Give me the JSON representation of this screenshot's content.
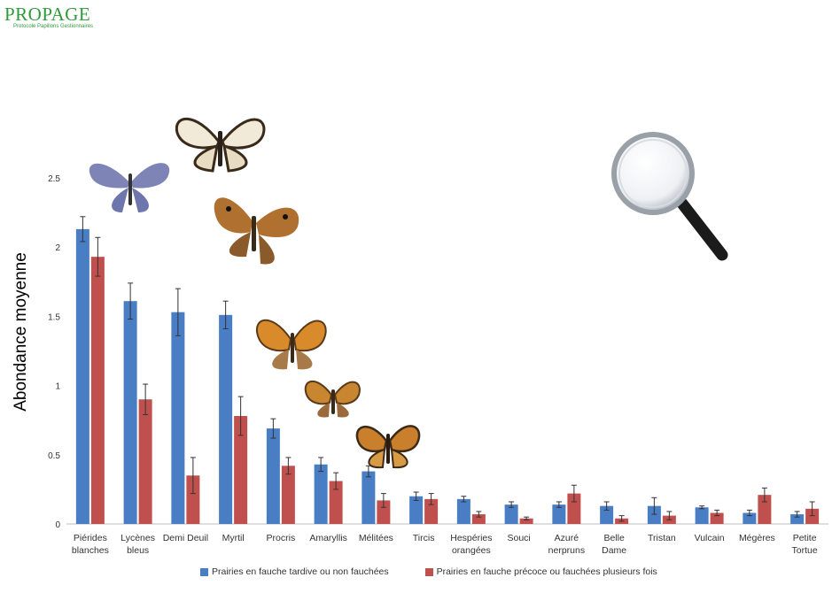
{
  "logo": {
    "brand": "PROPAGE",
    "tagline": "Protocole Papillons Gestionnaires",
    "icon": "butterfly-icon"
  },
  "decorations": {
    "magnifier_icon": "magnifying-glass-icon",
    "butterfly_images": [
      "blue-butterfly-icon",
      "checkered-butterfly-icon",
      "brown-butterfly-icon",
      "orange-butterfly-icon",
      "small-orange-butterfly-icon",
      "fritillary-butterfly-icon"
    ]
  },
  "chart_data": {
    "type": "bar",
    "title": "",
    "xlabel": "",
    "ylabel": "Abondance moyenne",
    "ylim": [
      0,
      2.5
    ],
    "yticks": [
      "0",
      "0.5",
      "1",
      "1.5",
      "2",
      "2.5"
    ],
    "yticks_values": [
      0,
      0.5,
      1,
      1.5,
      2,
      2.5
    ],
    "categories": [
      [
        "Piérides",
        "blanches"
      ],
      [
        "Lycènes",
        "bleus"
      ],
      [
        "Demi Deuil"
      ],
      [
        "Myrtil"
      ],
      [
        "Procris"
      ],
      [
        "Amaryllis"
      ],
      [
        "Mélitées"
      ],
      [
        "Tircis"
      ],
      [
        "Hespéries",
        "orangées"
      ],
      [
        "Souci"
      ],
      [
        "Azuré",
        "nerpruns"
      ],
      [
        "Belle",
        "Dame"
      ],
      [
        "Tristan"
      ],
      [
        "Vulcain"
      ],
      [
        "Mégères"
      ],
      [
        "Petite",
        "Tortue"
      ]
    ],
    "series": [
      {
        "name": "Prairies en fauche tardive ou non fauchées",
        "color": "#4a7ec4",
        "values": [
          2.13,
          1.61,
          1.53,
          1.51,
          0.69,
          0.43,
          0.38,
          0.2,
          0.18,
          0.14,
          0.14,
          0.13,
          0.13,
          0.12,
          0.08,
          0.07
        ],
        "errors": [
          0.09,
          0.13,
          0.17,
          0.1,
          0.07,
          0.05,
          0.04,
          0.03,
          0.02,
          0.02,
          0.02,
          0.03,
          0.06,
          0.01,
          0.02,
          0.02
        ]
      },
      {
        "name": "Prairies en fauche précoce ou fauchées plusieurs fois",
        "color": "#c0504d",
        "values": [
          1.93,
          0.9,
          0.35,
          0.78,
          0.42,
          0.31,
          0.17,
          0.18,
          0.07,
          0.04,
          0.22,
          0.04,
          0.06,
          0.08,
          0.21,
          0.11
        ],
        "errors": [
          0.14,
          0.11,
          0.13,
          0.14,
          0.06,
          0.06,
          0.05,
          0.04,
          0.02,
          0.01,
          0.06,
          0.02,
          0.03,
          0.02,
          0.05,
          0.05
        ]
      }
    ],
    "grid": false,
    "legend_position": "bottom"
  }
}
